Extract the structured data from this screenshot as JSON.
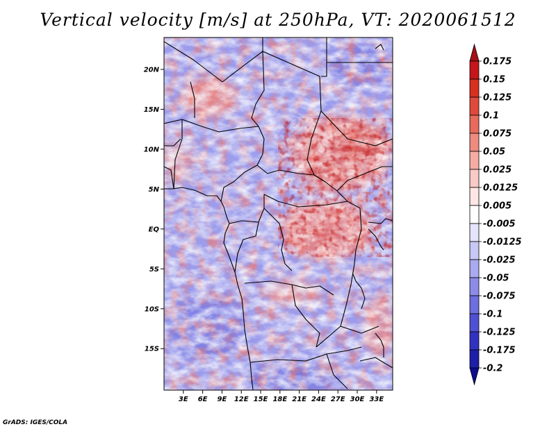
{
  "title": "Vertical velocity [m/s] at 250hPa, VT: 2020061512",
  "credit": "GrADS: IGES/COLA",
  "map": {
    "lon_range": [
      0,
      35.5
    ],
    "lat_range": [
      -20.2,
      24
    ],
    "lon_ticks": [
      {
        "value": 3,
        "label": "3E"
      },
      {
        "value": 6,
        "label": "6E"
      },
      {
        "value": 9,
        "label": "9E"
      },
      {
        "value": 12,
        "label": "12E"
      },
      {
        "value": 15,
        "label": "15E"
      },
      {
        "value": 18,
        "label": "18E"
      },
      {
        "value": 21,
        "label": "21E"
      },
      {
        "value": 24,
        "label": "24E"
      },
      {
        "value": 27,
        "label": "27E"
      },
      {
        "value": 30,
        "label": "30E"
      },
      {
        "value": 33,
        "label": "33E"
      }
    ],
    "lat_ticks": [
      {
        "value": 20,
        "label": "20N"
      },
      {
        "value": 15,
        "label": "15N"
      },
      {
        "value": 10,
        "label": "10N"
      },
      {
        "value": 5,
        "label": "5N"
      },
      {
        "value": 0,
        "label": "EQ"
      },
      {
        "value": -5,
        "label": "5S"
      },
      {
        "value": -10,
        "label": "10S"
      },
      {
        "value": -15,
        "label": "15S"
      }
    ]
  },
  "colorbar": {
    "labels": [
      "0.175",
      "0.15",
      "0.125",
      "0.1",
      "0.075",
      "0.05",
      "0.025",
      "0.0125",
      "0.005",
      "-0.005",
      "-0.0125",
      "-0.025",
      "-0.05",
      "-0.075",
      "-0.1",
      "-0.125",
      "-0.175",
      "-0.2"
    ],
    "colors": [
      "#a50f15",
      "#c4161c",
      "#d7301f",
      "#e04a3c",
      "#e86a5c",
      "#ef8a7f",
      "#f5aca3",
      "#f9cbc6",
      "#fde6e3",
      "#ffffff",
      "#e4e4fb",
      "#c8c8f6",
      "#aaaaf0",
      "#8c8ce8",
      "#6e6ee0",
      "#5050d4",
      "#3232c0",
      "#1e1ea8",
      "#0c0c90"
    ]
  }
}
